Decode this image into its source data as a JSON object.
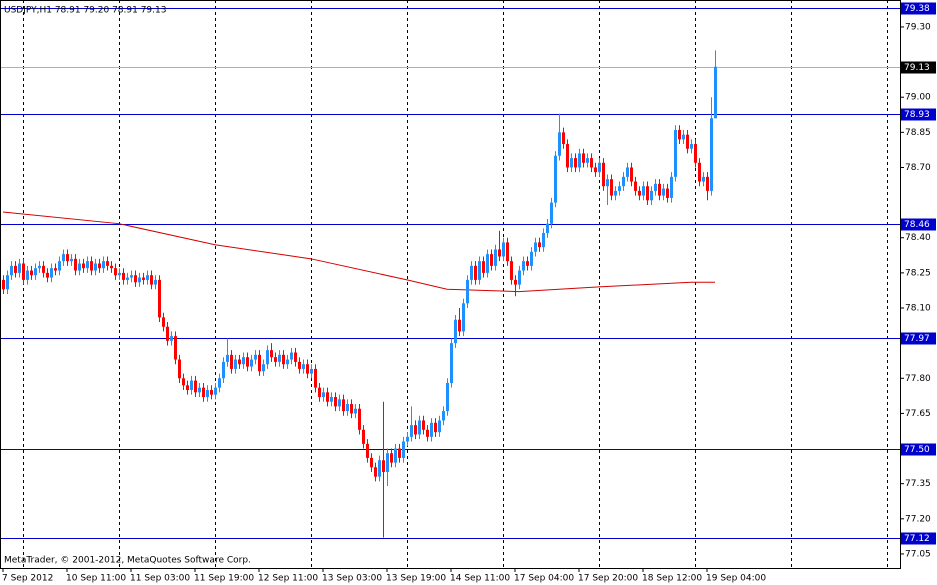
{
  "chart_data": {
    "type": "candlestick",
    "title": "USDJPY,H1  78.91 79.20 78.91 79.13",
    "footer": "MetaTrader, © 2001-2012, MetaQuotes Software Corp.",
    "up_color": "#1e90ff",
    "down_color": "#ff0000",
    "open": [
      78.22,
      78.18,
      78.24,
      78.28,
      78.25,
      78.29,
      78.22,
      78.26,
      78.24,
      78.27,
      78.28,
      78.25,
      78.23,
      78.27,
      78.26,
      78.3,
      78.33,
      78.3,
      78.31,
      78.26,
      78.29,
      78.27,
      78.3,
      78.26,
      78.29,
      78.27,
      78.3,
      78.28,
      78.27,
      78.24,
      78.25,
      78.22,
      78.23,
      78.24,
      78.21,
      78.23,
      78.22,
      78.24,
      78.2,
      78.22,
      78.06,
      78.02,
      77.96,
      77.98,
      77.88,
      77.8,
      77.77,
      77.75,
      77.79,
      77.74,
      77.76,
      77.72,
      77.75,
      77.73,
      77.76,
      77.8,
      77.87,
      77.9,
      77.84,
      77.88,
      77.86,
      77.89,
      77.85,
      77.88,
      77.9,
      77.83,
      77.86,
      77.92,
      77.89,
      77.87,
      77.9,
      77.86,
      77.88,
      77.91,
      77.87,
      77.84,
      77.86,
      77.82,
      77.84,
      77.76,
      77.72,
      77.74,
      77.7,
      77.72,
      77.68,
      77.71,
      77.66,
      77.69,
      77.65,
      77.67,
      77.58,
      77.52,
      77.46,
      77.42,
      77.38,
      77.45,
      77.4,
      77.48,
      77.44,
      77.5,
      77.46,
      77.53,
      77.55,
      77.6,
      77.56,
      77.62,
      77.58,
      77.55,
      77.61,
      77.57,
      77.62,
      77.66,
      77.78,
      77.95,
      78.05,
      78.0,
      78.12,
      78.22,
      78.28,
      78.22,
      78.3,
      78.25,
      78.33,
      78.28,
      78.35,
      78.32,
      78.38,
      78.3,
      78.22,
      78.2,
      78.26,
      78.3,
      78.28,
      78.34,
      78.38,
      78.36,
      78.42,
      78.46,
      78.55,
      78.75,
      78.85,
      78.8,
      78.7,
      78.74,
      78.7,
      78.76,
      78.72,
      78.74,
      78.7,
      78.68,
      78.72,
      78.62,
      78.65,
      78.58,
      78.6,
      78.62,
      78.66,
      78.7,
      78.64,
      78.6,
      78.58,
      78.62,
      78.56,
      78.6,
      78.63,
      78.58,
      78.61,
      78.57,
      78.66,
      78.86,
      78.82,
      78.84,
      78.78,
      78.8,
      78.72,
      78.64,
      78.66,
      78.6,
      78.91
    ],
    "high": [
      78.24,
      78.26,
      78.3,
      78.3,
      78.31,
      78.31,
      78.28,
      78.28,
      78.29,
      78.3,
      78.3,
      78.27,
      78.29,
      78.29,
      78.32,
      78.35,
      78.35,
      78.33,
      78.33,
      78.31,
      78.31,
      78.32,
      78.32,
      78.31,
      78.31,
      78.32,
      78.32,
      78.3,
      78.29,
      78.27,
      78.27,
      78.25,
      78.26,
      78.26,
      78.25,
      78.25,
      78.26,
      78.26,
      78.24,
      78.24,
      78.08,
      78.04,
      78.0,
      78.0,
      77.9,
      77.82,
      77.79,
      77.81,
      77.81,
      77.78,
      77.78,
      77.77,
      77.77,
      77.78,
      77.82,
      77.89,
      77.97,
      77.92,
      77.9,
      77.9,
      77.91,
      77.91,
      77.9,
      77.92,
      77.92,
      77.88,
      77.94,
      77.95,
      77.91,
      77.92,
      77.92,
      77.9,
      77.93,
      77.93,
      77.89,
      77.88,
      77.88,
      77.86,
      77.86,
      77.78,
      77.76,
      77.76,
      77.74,
      77.74,
      77.73,
      77.73,
      77.71,
      77.71,
      77.69,
      77.69,
      77.6,
      77.54,
      77.48,
      77.44,
      77.47,
      77.7,
      77.5,
      77.5,
      77.52,
      77.52,
      77.55,
      77.57,
      77.68,
      77.62,
      77.64,
      77.64,
      77.6,
      77.63,
      77.63,
      77.64,
      77.68,
      77.8,
      77.97,
      78.07,
      78.1,
      78.14,
      78.24,
      78.3,
      78.3,
      78.32,
      78.32,
      78.35,
      78.35,
      78.37,
      78.43,
      78.4,
      78.4,
      78.32,
      78.24,
      78.28,
      78.32,
      78.32,
      78.36,
      78.4,
      78.4,
      78.44,
      78.48,
      78.57,
      78.77,
      78.93,
      78.87,
      78.82,
      78.76,
      78.76,
      78.78,
      78.78,
      78.76,
      78.76,
      78.72,
      78.74,
      78.74,
      78.67,
      78.67,
      78.62,
      78.64,
      78.68,
      78.72,
      78.72,
      78.66,
      78.62,
      78.64,
      78.64,
      78.62,
      78.65,
      78.65,
      78.63,
      78.63,
      78.68,
      78.88,
      78.88,
      78.86,
      78.86,
      78.82,
      78.82,
      78.74,
      78.68,
      78.68,
      79.0,
      79.2
    ],
    "low": [
      78.16,
      78.16,
      78.22,
      78.23,
      78.23,
      78.2,
      78.2,
      78.22,
      78.22,
      78.25,
      78.23,
      78.21,
      78.21,
      78.24,
      78.24,
      78.28,
      78.28,
      78.28,
      78.24,
      78.24,
      78.25,
      78.25,
      78.24,
      78.24,
      78.25,
      78.25,
      78.26,
      78.25,
      78.22,
      78.22,
      78.2,
      78.2,
      78.21,
      78.19,
      78.19,
      78.2,
      78.2,
      78.18,
      78.18,
      78.04,
      78.0,
      77.94,
      77.94,
      77.86,
      77.78,
      77.75,
      77.73,
      77.73,
      77.72,
      77.72,
      77.7,
      77.7,
      77.71,
      77.71,
      77.74,
      77.78,
      77.85,
      77.82,
      77.82,
      77.84,
      77.84,
      77.83,
      77.83,
      77.86,
      77.81,
      77.81,
      77.84,
      77.87,
      77.85,
      77.85,
      77.84,
      77.84,
      77.86,
      77.85,
      77.82,
      77.82,
      77.8,
      77.8,
      77.74,
      77.7,
      77.7,
      77.68,
      77.68,
      77.66,
      77.66,
      77.64,
      77.64,
      77.63,
      77.63,
      77.56,
      77.5,
      77.44,
      77.4,
      77.36,
      77.36,
      77.12,
      77.34,
      77.42,
      77.42,
      77.44,
      77.44,
      77.51,
      77.53,
      77.54,
      77.54,
      77.56,
      77.53,
      77.53,
      77.55,
      77.55,
      77.6,
      77.64,
      77.76,
      77.93,
      77.98,
      77.98,
      78.1,
      78.2,
      78.2,
      78.2,
      78.23,
      78.23,
      78.26,
      78.26,
      78.3,
      78.3,
      78.28,
      78.2,
      78.15,
      78.18,
      78.24,
      78.26,
      78.26,
      78.32,
      78.34,
      78.34,
      78.4,
      78.44,
      78.53,
      78.73,
      78.78,
      78.68,
      78.68,
      78.68,
      78.68,
      78.7,
      78.7,
      78.68,
      78.66,
      78.66,
      78.6,
      78.54,
      78.56,
      78.56,
      78.58,
      78.6,
      78.64,
      78.62,
      78.58,
      78.56,
      78.56,
      78.54,
      78.54,
      78.58,
      78.56,
      78.56,
      78.55,
      78.55,
      78.64,
      78.8,
      78.8,
      78.76,
      78.76,
      78.7,
      78.62,
      78.62,
      78.56,
      78.58,
      78.91
    ],
    "close": [
      78.18,
      78.24,
      78.28,
      78.25,
      78.29,
      78.22,
      78.26,
      78.24,
      78.27,
      78.28,
      78.25,
      78.23,
      78.27,
      78.26,
      78.3,
      78.33,
      78.3,
      78.31,
      78.26,
      78.29,
      78.27,
      78.3,
      78.26,
      78.29,
      78.27,
      78.3,
      78.28,
      78.27,
      78.24,
      78.25,
      78.22,
      78.23,
      78.24,
      78.21,
      78.23,
      78.22,
      78.24,
      78.2,
      78.22,
      78.06,
      78.02,
      77.96,
      77.98,
      77.88,
      77.8,
      77.77,
      77.75,
      77.79,
      77.74,
      77.76,
      77.72,
      77.75,
      77.73,
      77.76,
      77.8,
      77.87,
      77.9,
      77.84,
      77.88,
      77.86,
      77.89,
      77.85,
      77.88,
      77.9,
      77.83,
      77.86,
      77.92,
      77.89,
      77.87,
      77.9,
      77.86,
      77.88,
      77.91,
      77.87,
      77.84,
      77.86,
      77.82,
      77.84,
      77.76,
      77.72,
      77.74,
      77.7,
      77.72,
      77.68,
      77.71,
      77.66,
      77.69,
      77.65,
      77.67,
      77.58,
      77.52,
      77.46,
      77.42,
      77.38,
      77.45,
      77.4,
      77.48,
      77.44,
      77.5,
      77.46,
      77.53,
      77.55,
      77.6,
      77.56,
      77.62,
      77.58,
      77.55,
      77.61,
      77.57,
      77.62,
      77.66,
      77.78,
      77.95,
      78.05,
      78.0,
      78.12,
      78.22,
      78.28,
      78.22,
      78.3,
      78.25,
      78.33,
      78.28,
      78.35,
      78.32,
      78.38,
      78.3,
      78.22,
      78.2,
      78.26,
      78.3,
      78.28,
      78.34,
      78.38,
      78.36,
      78.42,
      78.46,
      78.55,
      78.75,
      78.85,
      78.8,
      78.7,
      78.74,
      78.7,
      78.76,
      78.72,
      78.74,
      78.7,
      78.68,
      78.72,
      78.62,
      78.65,
      78.58,
      78.6,
      78.62,
      78.66,
      78.7,
      78.64,
      78.6,
      78.58,
      78.62,
      78.56,
      78.6,
      78.63,
      78.58,
      78.61,
      78.57,
      78.66,
      78.86,
      78.82,
      78.84,
      78.78,
      78.8,
      78.72,
      78.64,
      78.66,
      78.6,
      78.91,
      79.13
    ],
    "ma": {
      "color": "#d40000",
      "x": [
        0,
        29,
        53,
        77,
        101,
        111,
        129,
        149,
        172,
        178
      ],
      "values": [
        78.51,
        78.46,
        78.37,
        78.31,
        78.22,
        78.18,
        78.17,
        78.19,
        78.21,
        78.21
      ]
    },
    "hlines": {
      "color": "#0000cc",
      "values": [
        {
          "value": 79.38,
          "label": "79.38"
        },
        {
          "value": 78.93,
          "label": "78.93"
        },
        {
          "value": 78.46,
          "label": "78.46"
        },
        {
          "value": 77.97,
          "label": "77.97"
        },
        {
          "value": 77.5,
          "label": "77.50"
        },
        {
          "value": 77.12,
          "label": "77.12"
        }
      ]
    },
    "bid": {
      "value": 79.13,
      "label": "79.13"
    },
    "ylim": [
      76.99,
      79.415
    ],
    "yticks": [
      {
        "value": 79.3,
        "label": "79.30"
      },
      {
        "value": 79,
        "label": "79.00"
      },
      {
        "value": 78.85,
        "label": "78.85"
      },
      {
        "value": 78.7,
        "label": "78.70"
      },
      {
        "value": 78.4,
        "label": "78.40"
      },
      {
        "value": 78.25,
        "label": "78.25"
      },
      {
        "value": 78.1,
        "label": "78.10"
      },
      {
        "value": 77.8,
        "label": "77.80"
      },
      {
        "value": 77.65,
        "label": "77.65"
      },
      {
        "value": 77.35,
        "label": "77.35"
      },
      {
        "value": 77.2,
        "label": "77.20"
      },
      {
        "value": 77.05,
        "label": "77.05"
      }
    ],
    "xticks": [
      {
        "value": 0,
        "label": "7 Sep 2012"
      },
      {
        "value": 16,
        "label": "10 Sep 11:00"
      },
      {
        "value": 32,
        "label": "11 Sep 03:00"
      },
      {
        "value": 48,
        "label": "11 Sep 19:00"
      },
      {
        "value": 64,
        "label": "12 Sep 11:00"
      },
      {
        "value": 80,
        "label": "13 Sep 03:00"
      },
      {
        "value": 96,
        "label": "13 Sep 19:00"
      },
      {
        "value": 112,
        "label": "14 Sep 11:00"
      },
      {
        "value": 128,
        "label": "17 Sep 04:00"
      },
      {
        "value": 144,
        "label": "17 Sep 20:00"
      },
      {
        "value": 160,
        "label": "18 Sep 12:00"
      },
      {
        "value": 176,
        "label": "19 Sep 04:00"
      }
    ]
  }
}
